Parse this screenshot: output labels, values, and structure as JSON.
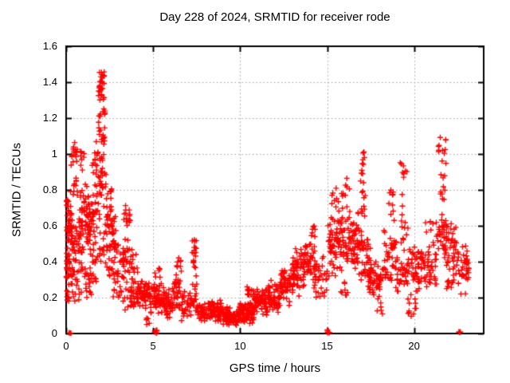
{
  "chart_data": {
    "type": "scatter",
    "title": "Day 228 of 2024, SRMTID for receiver rode",
    "xlabel": "GPS time / hours",
    "ylabel": "SRMTID / TECUs",
    "xlim": [
      0,
      24
    ],
    "ylim": [
      0,
      1.6
    ],
    "xticks": [
      0,
      5,
      10,
      15,
      20
    ],
    "xtick_labels": [
      "0",
      "5",
      "10",
      "15",
      "20"
    ],
    "yticks": [
      0,
      0.2,
      0.4,
      0.6,
      0.8,
      1.0,
      1.2,
      1.4,
      1.6
    ],
    "ytick_labels": [
      "0",
      "0.2",
      "0.4",
      "0.6",
      "0.8",
      "1",
      "1.2",
      "1.4",
      "1.6"
    ],
    "grid": true,
    "grid_style": "dotted",
    "grid_color": "#9e9e9e",
    "marker": "plus",
    "marker_color": "#ff0000",
    "marker_size_px": 7,
    "border_color": "#000000",
    "background_color": "#ffffff",
    "legend": "none",
    "max_value_approx": 1.47,
    "max_value_time_hours": 2.0,
    "min_band": "hours 9-10 at 0.04-0.15 TECU",
    "zero_value_clusters_hours": [
      0.2,
      5.15,
      15.05,
      22.6
    ],
    "bands_format": "[x_start_hours, x_end_hours, y_min_TECU, y_max_TECU, n_points, dist: 0=mid-weighted 1=uniform]",
    "bands": [
      [
        0.0,
        0.1,
        0.2,
        0.75,
        25,
        1
      ],
      [
        0.02,
        0.35,
        0.45,
        0.75,
        30,
        0
      ],
      [
        0.05,
        0.4,
        0.18,
        0.45,
        25,
        1
      ],
      [
        0.08,
        0.28,
        0.0,
        0.01,
        3,
        1
      ],
      [
        0.25,
        0.65,
        0.95,
        1.08,
        15,
        0
      ],
      [
        0.25,
        0.7,
        0.76,
        0.95,
        12,
        1
      ],
      [
        0.3,
        0.78,
        0.35,
        0.7,
        32,
        0
      ],
      [
        0.4,
        0.82,
        0.18,
        0.35,
        15,
        1
      ],
      [
        0.8,
        1.05,
        0.9,
        1.06,
        8,
        0
      ],
      [
        0.75,
        1.45,
        0.4,
        0.85,
        75,
        0
      ],
      [
        0.85,
        1.45,
        0.2,
        0.4,
        25,
        1
      ],
      [
        1.45,
        1.85,
        0.85,
        1.1,
        14,
        0
      ],
      [
        1.45,
        1.85,
        0.45,
        0.85,
        30,
        0
      ],
      [
        1.5,
        1.85,
        0.28,
        0.45,
        12,
        1
      ],
      [
        1.85,
        2.2,
        1.28,
        1.47,
        28,
        0
      ],
      [
        1.85,
        2.25,
        0.95,
        1.28,
        30,
        1
      ],
      [
        1.85,
        2.3,
        0.6,
        0.95,
        25,
        1
      ],
      [
        1.9,
        2.35,
        0.38,
        0.6,
        14,
        1
      ],
      [
        2.25,
        2.65,
        0.5,
        0.85,
        28,
        0
      ],
      [
        2.3,
        2.7,
        0.3,
        0.5,
        15,
        1
      ],
      [
        2.6,
        2.95,
        0.35,
        0.68,
        22,
        0
      ],
      [
        2.7,
        3.0,
        0.2,
        0.35,
        12,
        1
      ],
      [
        2.95,
        3.35,
        0.18,
        0.5,
        20,
        1
      ],
      [
        3.3,
        3.7,
        0.55,
        0.73,
        16,
        0
      ],
      [
        3.25,
        3.9,
        0.25,
        0.55,
        28,
        0
      ],
      [
        3.35,
        3.95,
        0.13,
        0.25,
        16,
        1
      ],
      [
        3.75,
        4.45,
        0.12,
        0.32,
        45,
        0
      ],
      [
        3.8,
        4.15,
        0.32,
        0.45,
        8,
        1
      ],
      [
        4.45,
        5.0,
        0.12,
        0.3,
        40,
        0
      ],
      [
        4.6,
        4.95,
        0.05,
        0.12,
        8,
        1
      ],
      [
        5.08,
        5.25,
        0.0,
        0.02,
        9,
        1
      ],
      [
        5.0,
        5.6,
        0.1,
        0.3,
        48,
        0
      ],
      [
        5.1,
        5.4,
        0.3,
        0.38,
        6,
        1
      ],
      [
        5.6,
        6.2,
        0.07,
        0.27,
        45,
        0
      ],
      [
        6.2,
        6.62,
        0.1,
        0.35,
        30,
        0
      ],
      [
        6.35,
        6.62,
        0.33,
        0.43,
        8,
        1
      ],
      [
        6.62,
        7.22,
        0.07,
        0.26,
        35,
        0
      ],
      [
        7.25,
        7.48,
        0.33,
        0.57,
        18,
        0
      ],
      [
        7.25,
        7.52,
        0.15,
        0.33,
        12,
        1
      ],
      [
        7.45,
        8.1,
        0.05,
        0.2,
        42,
        0
      ],
      [
        8.1,
        9.0,
        0.05,
        0.2,
        72,
        0
      ],
      [
        9.0,
        9.95,
        0.04,
        0.15,
        85,
        0
      ],
      [
        9.95,
        10.8,
        0.05,
        0.18,
        80,
        0
      ],
      [
        10.4,
        10.78,
        0.17,
        0.27,
        15,
        1
      ],
      [
        10.8,
        11.6,
        0.08,
        0.26,
        62,
        0
      ],
      [
        11.6,
        12.3,
        0.11,
        0.3,
        55,
        0
      ],
      [
        12.3,
        13.0,
        0.15,
        0.38,
        55,
        0
      ],
      [
        13.0,
        13.6,
        0.2,
        0.48,
        52,
        0
      ],
      [
        13.6,
        14.3,
        0.25,
        0.55,
        52,
        0
      ],
      [
        14.1,
        14.38,
        0.48,
        0.6,
        8,
        1
      ],
      [
        14.3,
        15.0,
        0.16,
        0.45,
        35,
        0
      ],
      [
        15.0,
        15.14,
        0.0,
        0.02,
        9,
        1
      ],
      [
        15.05,
        15.6,
        0.28,
        0.72,
        48,
        0
      ],
      [
        15.2,
        15.55,
        0.72,
        0.82,
        6,
        1
      ],
      [
        15.6,
        16.35,
        0.3,
        0.75,
        58,
        0
      ],
      [
        15.8,
        16.3,
        0.75,
        0.88,
        8,
        1
      ],
      [
        15.7,
        16.2,
        0.2,
        0.3,
        8,
        1
      ],
      [
        16.35,
        17.0,
        0.28,
        0.72,
        55,
        0
      ],
      [
        16.9,
        17.15,
        0.8,
        1.04,
        12,
        0
      ],
      [
        16.9,
        17.2,
        0.6,
        0.8,
        10,
        1
      ],
      [
        17.0,
        17.5,
        0.25,
        0.6,
        35,
        0
      ],
      [
        17.4,
        18.2,
        0.18,
        0.42,
        52,
        0
      ],
      [
        17.8,
        18.2,
        0.1,
        0.2,
        6,
        1
      ],
      [
        18.2,
        19.0,
        0.25,
        0.62,
        45,
        0
      ],
      [
        18.55,
        18.95,
        0.62,
        0.84,
        10,
        1
      ],
      [
        19.2,
        19.6,
        0.8,
        0.97,
        8,
        0
      ],
      [
        19.25,
        19.65,
        0.5,
        0.8,
        12,
        1
      ],
      [
        19.0,
        20.2,
        0.18,
        0.5,
        62,
        0
      ],
      [
        19.65,
        20.15,
        0.09,
        0.2,
        10,
        1
      ],
      [
        20.2,
        21.3,
        0.22,
        0.55,
        62,
        0
      ],
      [
        20.6,
        21.1,
        0.55,
        0.63,
        6,
        1
      ],
      [
        21.2,
        21.9,
        0.45,
        0.7,
        25,
        0
      ],
      [
        21.4,
        21.85,
        0.9,
        1.15,
        12,
        0
      ],
      [
        21.45,
        21.85,
        0.7,
        0.9,
        10,
        1
      ],
      [
        21.7,
        22.4,
        0.33,
        0.66,
        45,
        0
      ],
      [
        21.8,
        22.4,
        0.24,
        0.33,
        10,
        1
      ],
      [
        22.4,
        23.1,
        0.2,
        0.55,
        35,
        0
      ],
      [
        22.52,
        22.72,
        0.0,
        0.01,
        4,
        1
      ],
      [
        22.85,
        23.15,
        0.3,
        0.45,
        10,
        0
      ]
    ]
  }
}
